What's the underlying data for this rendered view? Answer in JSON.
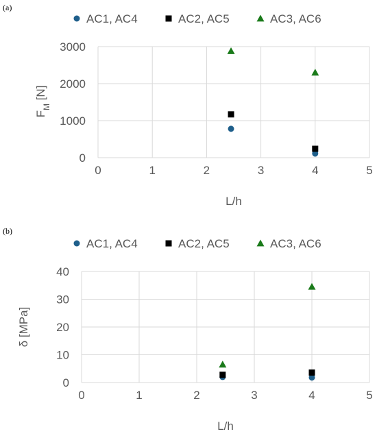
{
  "chart_data": [
    {
      "panel": "(a)",
      "type": "scatter",
      "xlabel": "L/h",
      "ylabel_main": "F",
      "ylabel_sub": "M",
      "ylabel_unit": " [N]",
      "xlim": [
        0,
        5
      ],
      "ylim": [
        0,
        3000
      ],
      "xticks": [
        0,
        1,
        2,
        3,
        4,
        5
      ],
      "yticks": [
        0,
        1000,
        2000,
        3000
      ],
      "grid": true,
      "legend_position": "top",
      "series": [
        {
          "name": "AC1, AC4",
          "marker": "circle",
          "color": "#1f5f8b",
          "x": [
            2.45,
            4.0
          ],
          "y": [
            780,
            110
          ]
        },
        {
          "name": "AC2, AC5",
          "marker": "square",
          "color": "#000000",
          "x": [
            2.45,
            4.0
          ],
          "y": [
            1170,
            240
          ]
        },
        {
          "name": "AC3, AC6",
          "marker": "triangle",
          "color": "#1a7a1a",
          "x": [
            2.45,
            4.0
          ],
          "y": [
            2880,
            2300
          ]
        }
      ]
    },
    {
      "panel": "(b)",
      "type": "scatter",
      "xlabel": "L/h",
      "ylabel_main": "δ [MPa]",
      "ylabel_sub": "",
      "ylabel_unit": "",
      "xlim": [
        0,
        5
      ],
      "ylim": [
        0,
        40
      ],
      "xticks": [
        0,
        1,
        2,
        3,
        4,
        5
      ],
      "yticks": [
        0,
        10,
        20,
        30,
        40
      ],
      "grid": true,
      "legend_position": "top",
      "series": [
        {
          "name": "AC1, AC4",
          "marker": "circle",
          "color": "#1f5f8b",
          "x": [
            2.45,
            4.0
          ],
          "y": [
            2.0,
            1.8
          ]
        },
        {
          "name": "AC2, AC5",
          "marker": "square",
          "color": "#000000",
          "x": [
            2.45,
            4.0
          ],
          "y": [
            2.8,
            3.6
          ]
        },
        {
          "name": "AC3, AC6",
          "marker": "triangle",
          "color": "#1a7a1a",
          "x": [
            2.45,
            4.0
          ],
          "y": [
            6.5,
            34.5
          ]
        }
      ]
    }
  ]
}
